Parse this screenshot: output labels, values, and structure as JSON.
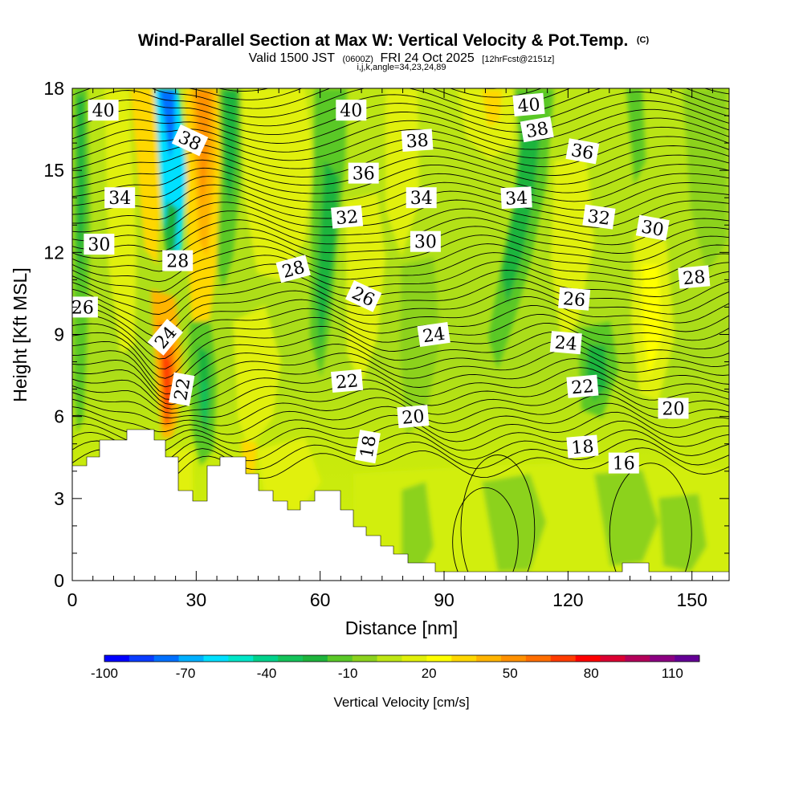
{
  "chart_data": {
    "type": "contour",
    "title": "Wind-Parallel Section at Max W: Vertical Velocity & Pot.Temp.",
    "title_mark": "(C)",
    "valid_time": {
      "prefix": "Valid 1500 JST",
      "utc": "(0600Z)",
      "date": "FRI 24 Oct 2025",
      "forecast": "[12hrFcst@2151z]"
    },
    "grid_info": "i,j,k,angle=34,23,24,89",
    "xlabel": "Distance [nm]",
    "ylabel": "Height [Kft MSL]",
    "xlim": [
      0,
      159
    ],
    "ylim": [
      0,
      18
    ],
    "x_ticks": [
      "0",
      "30",
      "60",
      "90",
      "120",
      "150"
    ],
    "y_ticks": [
      "0",
      "3",
      "6",
      "9",
      "12",
      "15",
      "18"
    ],
    "colorbar": {
      "label": "Vertical Velocity [cm/s]",
      "min": -100,
      "max": 120,
      "tick_labels": [
        "-100",
        "-70",
        "-40",
        "-10",
        "20",
        "50",
        "80",
        "110"
      ],
      "colors": [
        "#0000ff",
        "#0a3cff",
        "#0070ff",
        "#00b0ff",
        "#00e0ff",
        "#00e6c8",
        "#00d28c",
        "#14c35a",
        "#1eb43c",
        "#5ac828",
        "#8cd21e",
        "#bee614",
        "#e1f00a",
        "#ffff00",
        "#ffd700",
        "#ffb400",
        "#ff9100",
        "#ff6e00",
        "#ff3c00",
        "#ff0000",
        "#dc0032",
        "#b4005a",
        "#8c0082",
        "#640096"
      ]
    },
    "potential_temperature_labels": [
      "40",
      "40",
      "40",
      "38",
      "38",
      "38",
      "36",
      "36",
      "34",
      "34",
      "34",
      "32",
      "32",
      "30",
      "30",
      "30",
      "28",
      "28",
      "28",
      "26",
      "26",
      "26",
      "24",
      "24",
      "24",
      "22",
      "22",
      "22",
      "20",
      "20",
      "18",
      "18",
      "16"
    ]
  }
}
